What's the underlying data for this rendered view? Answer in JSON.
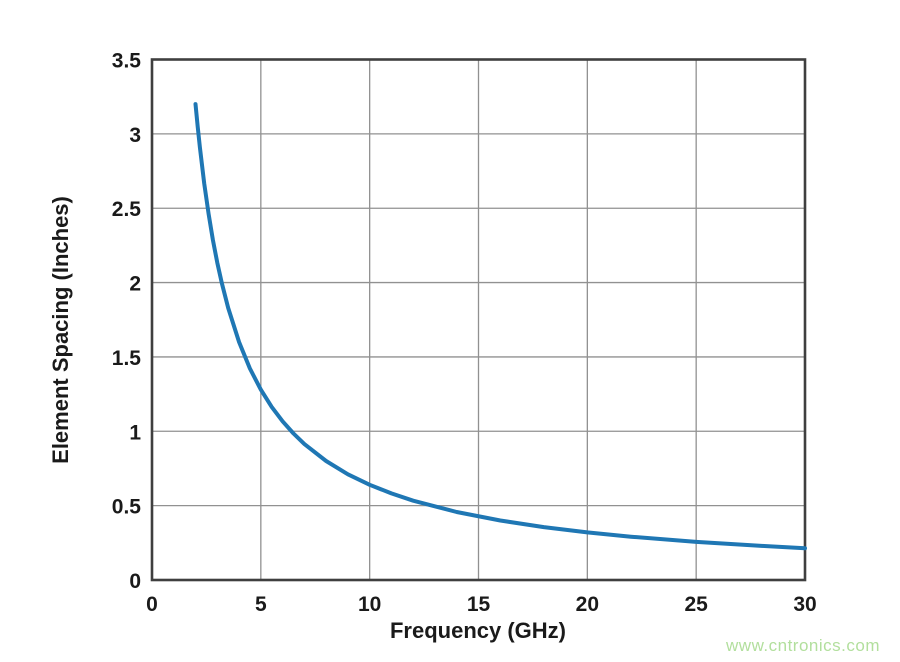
{
  "chart_data": {
    "type": "line",
    "title": "",
    "xlabel": "Frequency (GHz)",
    "ylabel": "Element Spacing (Inches)",
    "xlim": [
      0,
      30
    ],
    "ylim": [
      0,
      3.5
    ],
    "xticks": [
      0,
      5,
      10,
      15,
      20,
      25,
      30
    ],
    "yticks": [
      0,
      0.5,
      1,
      1.5,
      2,
      2.5,
      3,
      3.5
    ],
    "grid": true,
    "legend": "none",
    "series": [
      {
        "name": "element-spacing-vs-frequency",
        "color": "#1f77b4",
        "line_width": 4,
        "x": [
          2,
          2.1,
          2.2,
          2.4,
          2.6,
          2.8,
          3,
          3.2,
          3.5,
          4,
          4.5,
          5,
          5.5,
          6,
          6.5,
          7,
          8,
          9,
          10,
          11,
          12,
          14,
          16,
          18,
          20,
          22,
          25,
          28,
          30
        ],
        "y": [
          3.2,
          3.048,
          2.909,
          2.667,
          2.462,
          2.286,
          2.133,
          2.0,
          1.829,
          1.6,
          1.422,
          1.28,
          1.164,
          1.067,
          0.985,
          0.914,
          0.8,
          0.711,
          0.64,
          0.582,
          0.533,
          0.457,
          0.4,
          0.356,
          0.32,
          0.291,
          0.256,
          0.229,
          0.213
        ]
      }
    ]
  },
  "colors": {
    "background": "#ffffff",
    "grid": "#919191",
    "spine": "#3f3f3f",
    "tick_label": "#1a1a1a",
    "axis_label": "#1a1a1a"
  },
  "watermark": {
    "text": "www.cntronics.com",
    "color": "#b2df9d"
  }
}
